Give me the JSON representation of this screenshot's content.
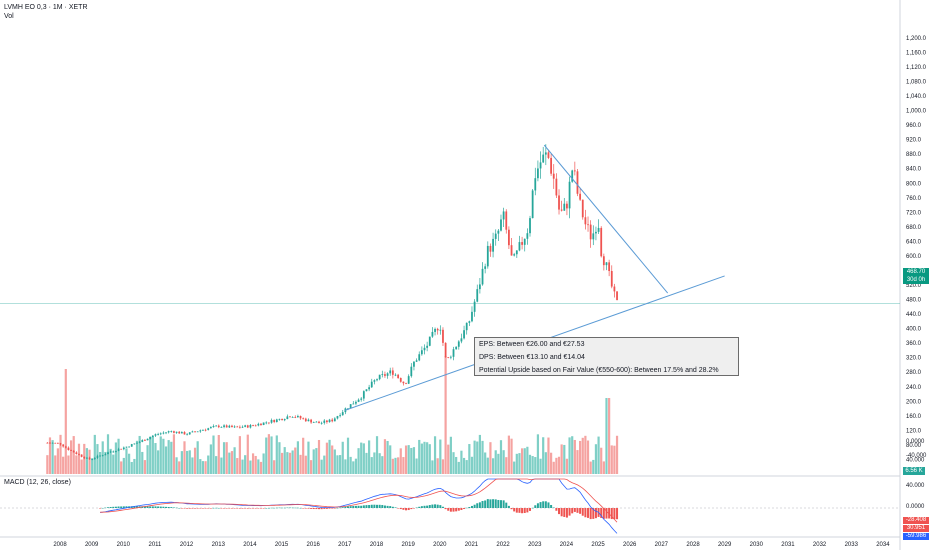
{
  "header": {
    "symbol_line": "LVMH EO 0,3 · 1M · XETR",
    "vol_label": "Vol"
  },
  "macd_label": "MACD (12, 26, close)",
  "info_box": {
    "eps": "EPS: Between €26.00 and €27.53",
    "dps": "DPS: Between €13.10 and €14.04",
    "upside": "Potential Upside based on Fair Value (€550-600): Between 17.5% and 28.2%"
  },
  "badges": {
    "price": "468.70",
    "price_sub": "30d 0h",
    "volume": "6.56 K",
    "macd_1": "-28.408",
    "macd_2": "30.951",
    "macd_3": "-59.986"
  },
  "colors": {
    "up": "#26a69a",
    "down": "#ef5350",
    "volume_up": "#7fcfc6",
    "volume_down": "#f5a3a1",
    "trendline": "#5b9bd5",
    "macd_line": "#2962ff",
    "signal_line": "#ef5350",
    "price_line": "#26a69a"
  },
  "chart_data": {
    "type": "candlestick",
    "price_axis_ticks": [
      1200,
      1160,
      1120,
      1080,
      1040,
      1000,
      960,
      920,
      880,
      840,
      800,
      760,
      720,
      680,
      640,
      600,
      560,
      520,
      480,
      440,
      400,
      360,
      320,
      280,
      240,
      200,
      160,
      120,
      80,
      40,
      0,
      -40
    ],
    "price_axis_labels": [
      "1,200.0",
      "1,160.0",
      "1,120.0",
      "1,080.0",
      "1,040.0",
      "1,000.0",
      "960.0",
      "920.0",
      "880.0",
      "840.0",
      "800.0",
      "760.0",
      "720.0",
      "680.0",
      "640.0",
      "600.0",
      "560.0",
      "520.0",
      "480.0",
      "440.0",
      "400.0",
      "360.0",
      "320.0",
      "280.0",
      "240.0",
      "200.0",
      "160.0",
      "120.0",
      "80.00",
      "40.000",
      "0.0000",
      "-40.000"
    ],
    "macd_axis_labels": [
      "40.000",
      "0.0000"
    ],
    "x_labels": [
      "2008",
      "2009",
      "2010",
      "2011",
      "2012",
      "2013",
      "2014",
      "2015",
      "2016",
      "2017",
      "2018",
      "2019",
      "2020",
      "2021",
      "2022",
      "2023",
      "2024",
      "2025",
      "2026",
      "2027",
      "2028",
      "2029",
      "2030",
      "2031",
      "2032",
      "2033",
      "2034"
    ],
    "price_path": [
      [
        2007.6,
        86
      ],
      [
        2008.0,
        84
      ],
      [
        2008.3,
        66
      ],
      [
        2008.9,
        40
      ],
      [
        2009.2,
        48
      ],
      [
        2009.6,
        62
      ],
      [
        2010.0,
        72
      ],
      [
        2010.5,
        88
      ],
      [
        2011.0,
        108
      ],
      [
        2011.5,
        118
      ],
      [
        2012.0,
        110
      ],
      [
        2012.5,
        122
      ],
      [
        2013.0,
        132
      ],
      [
        2013.5,
        128
      ],
      [
        2014.0,
        132
      ],
      [
        2014.5,
        142
      ],
      [
        2015.0,
        152
      ],
      [
        2015.3,
        162
      ],
      [
        2015.8,
        148
      ],
      [
        2016.2,
        140
      ],
      [
        2016.6,
        148
      ],
      [
        2017.0,
        178
      ],
      [
        2017.5,
        212
      ],
      [
        2018.0,
        262
      ],
      [
        2018.5,
        282
      ],
      [
        2018.9,
        248
      ],
      [
        2019.2,
        310
      ],
      [
        2019.6,
        355
      ],
      [
        2020.0,
        415
      ],
      [
        2020.2,
        308
      ],
      [
        2020.5,
        352
      ],
      [
        2020.9,
        412
      ],
      [
        2021.2,
        505
      ],
      [
        2021.5,
        612
      ],
      [
        2021.8,
        652
      ],
      [
        2022.0,
        712
      ],
      [
        2022.3,
        578
      ],
      [
        2022.5,
        618
      ],
      [
        2022.8,
        680
      ],
      [
        2023.0,
        822
      ],
      [
        2023.2,
        862
      ],
      [
        2023.4,
        880
      ],
      [
        2023.6,
        812
      ],
      [
        2023.8,
        712
      ],
      [
        2024.0,
        738
      ],
      [
        2024.2,
        848
      ],
      [
        2024.4,
        748
      ],
      [
        2024.6,
        688
      ],
      [
        2024.8,
        650
      ],
      [
        2025.0,
        705
      ],
      [
        2025.1,
        615
      ],
      [
        2025.3,
        560
      ],
      [
        2025.5,
        492
      ],
      [
        2025.6,
        468.7
      ]
    ],
    "trendline_support": {
      "from": [
        2017.0,
        175
      ],
      "to": [
        2029.0,
        545
      ]
    },
    "trendline_resistance": {
      "from": [
        2023.3,
        905
      ],
      "to": [
        2027.2,
        498
      ]
    },
    "last_price": 468.7
  }
}
